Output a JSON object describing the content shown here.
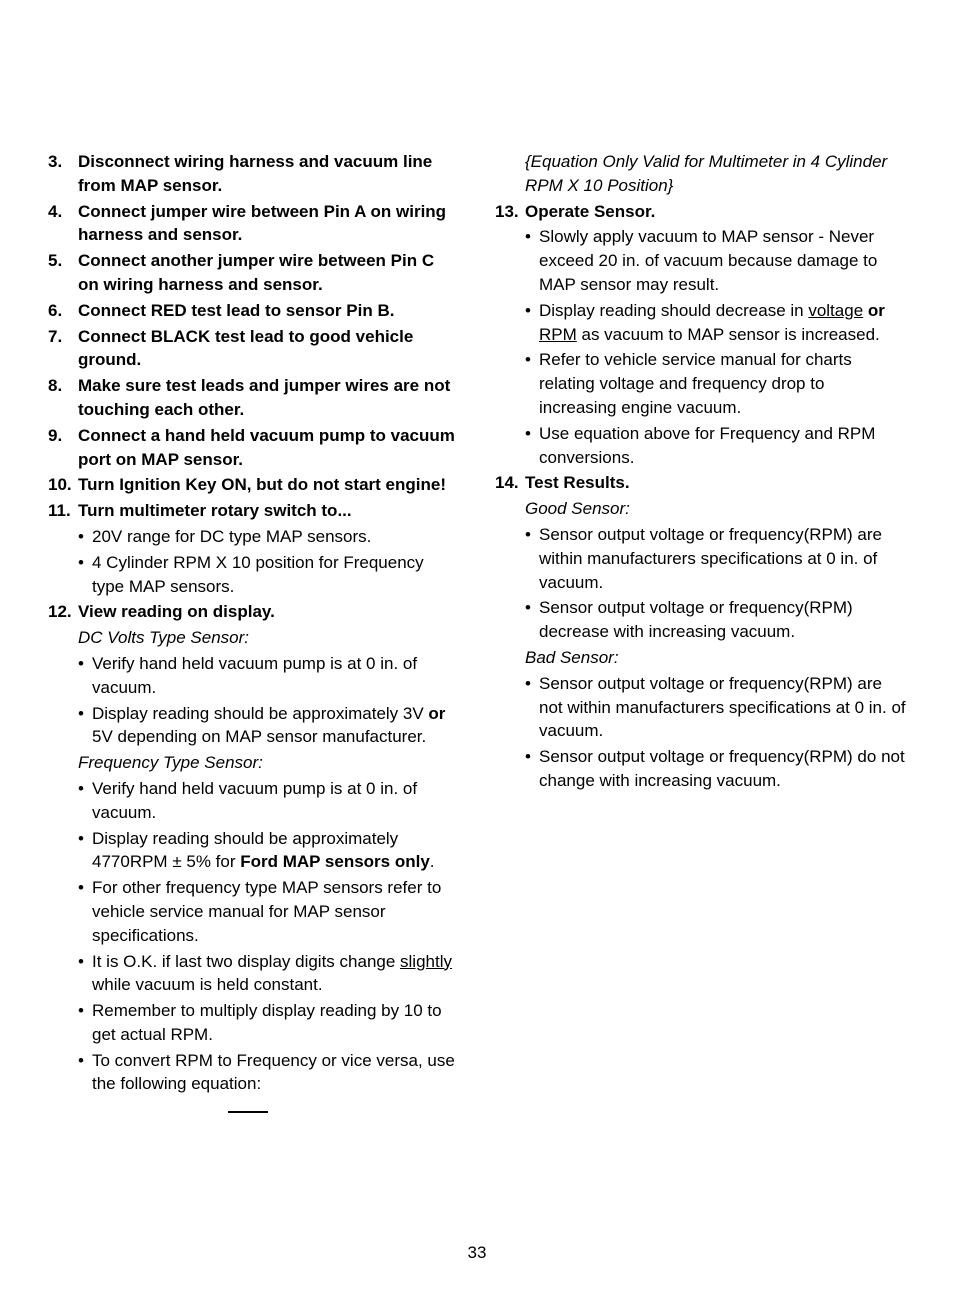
{
  "page_number": "33",
  "left": {
    "items": [
      {
        "num": "3.",
        "title": "Disconnect wiring harness and vacuum line from MAP sensor."
      },
      {
        "num": "4.",
        "title": "Connect jumper wire between Pin A on wiring harness and sensor."
      },
      {
        "num": "5.",
        "title": "Connect another jumper wire between Pin C on wiring harness and sensor."
      },
      {
        "num": "6.",
        "title": "Connect RED test lead to sensor Pin B."
      },
      {
        "num": "7.",
        "title": "Connect BLACK test lead to good vehicle ground."
      },
      {
        "num": "8.",
        "title": "Make sure test leads and jumper wires are not touching each other."
      },
      {
        "num": "9.",
        "title": "Connect a hand held vacuum pump to vacuum port on MAP sensor."
      },
      {
        "num": "10.",
        "title": "Turn Ignition Key ON, but do not start engine!"
      }
    ],
    "item11": {
      "num": "11.",
      "title": "Turn multimeter rotary switch to...",
      "bullets": [
        "20V range for DC type MAP sensors.",
        "4 Cylinder RPM X 10 position for Frequency type MAP sensors."
      ]
    },
    "item12": {
      "num": "12.",
      "title": "View reading on display.",
      "sub1": "DC Volts Type Sensor:",
      "b1": "Verify hand held vacuum pump is at 0 in. of vacuum.",
      "b2_pre": "Display reading should be approximately 3V ",
      "b2_bold": "or",
      "b2_post": " 5V depending on MAP sensor manufacturer.",
      "sub2": "Frequency Type Sensor:",
      "b3": "Verify hand held vacuum pump is at 0 in. of vacuum.",
      "b4_pre": "Display reading should be approximately 4770RPM ± 5% for ",
      "b4_bold": "Ford MAP sensors only",
      "b4_post": ".",
      "b5": "For other frequency type MAP sensors refer to vehicle service manual for MAP sensor specifications.",
      "b6_pre": "It is O.K. if last two display digits change ",
      "b6_u": "slightly",
      "b6_post": " while vacuum is held constant.",
      "b7": "Remember to multiply display reading by 10 to get actual RPM.",
      "b8": "To convert RPM to Frequency or vice versa, use the following equation:"
    }
  },
  "right": {
    "eq_note": "{Equation Only Valid for Multimeter in 4 Cylinder RPM X 10 Position}",
    "item13": {
      "num": "13.",
      "title": "Operate Sensor.",
      "b1": "Slowly apply vacuum to MAP sensor - Never exceed 20 in. of vacuum because damage to MAP sensor may result.",
      "b2_pre": "Display reading should decrease in ",
      "b2_u1": "voltage",
      "b2_mid": "  ",
      "b2_bold": "or",
      "b2_mid2": " ",
      "b2_u2": "RPM",
      "b2_post": " as vacuum to MAP sensor is increased.",
      "b3": "Refer to vehicle service manual for charts relating voltage and frequency drop to increasing engine vacuum.",
      "b4": "Use equation above for Frequency and RPM conversions."
    },
    "item14": {
      "num": "14.",
      "title": "Test Results.",
      "good": "Good Sensor:",
      "g1": "Sensor output voltage or frequency(RPM) are within manufacturers specifications at 0 in. of vacuum.",
      "g2": "Sensor output voltage or frequency(RPM) decrease with increasing vacuum.",
      "bad": "Bad Sensor:",
      "bd1": "Sensor output voltage or frequency(RPM) are not within manufacturers specifications at 0 in. of vacuum.",
      "bd2": "Sensor output voltage or frequency(RPM) do not change with increasing vacuum."
    }
  }
}
